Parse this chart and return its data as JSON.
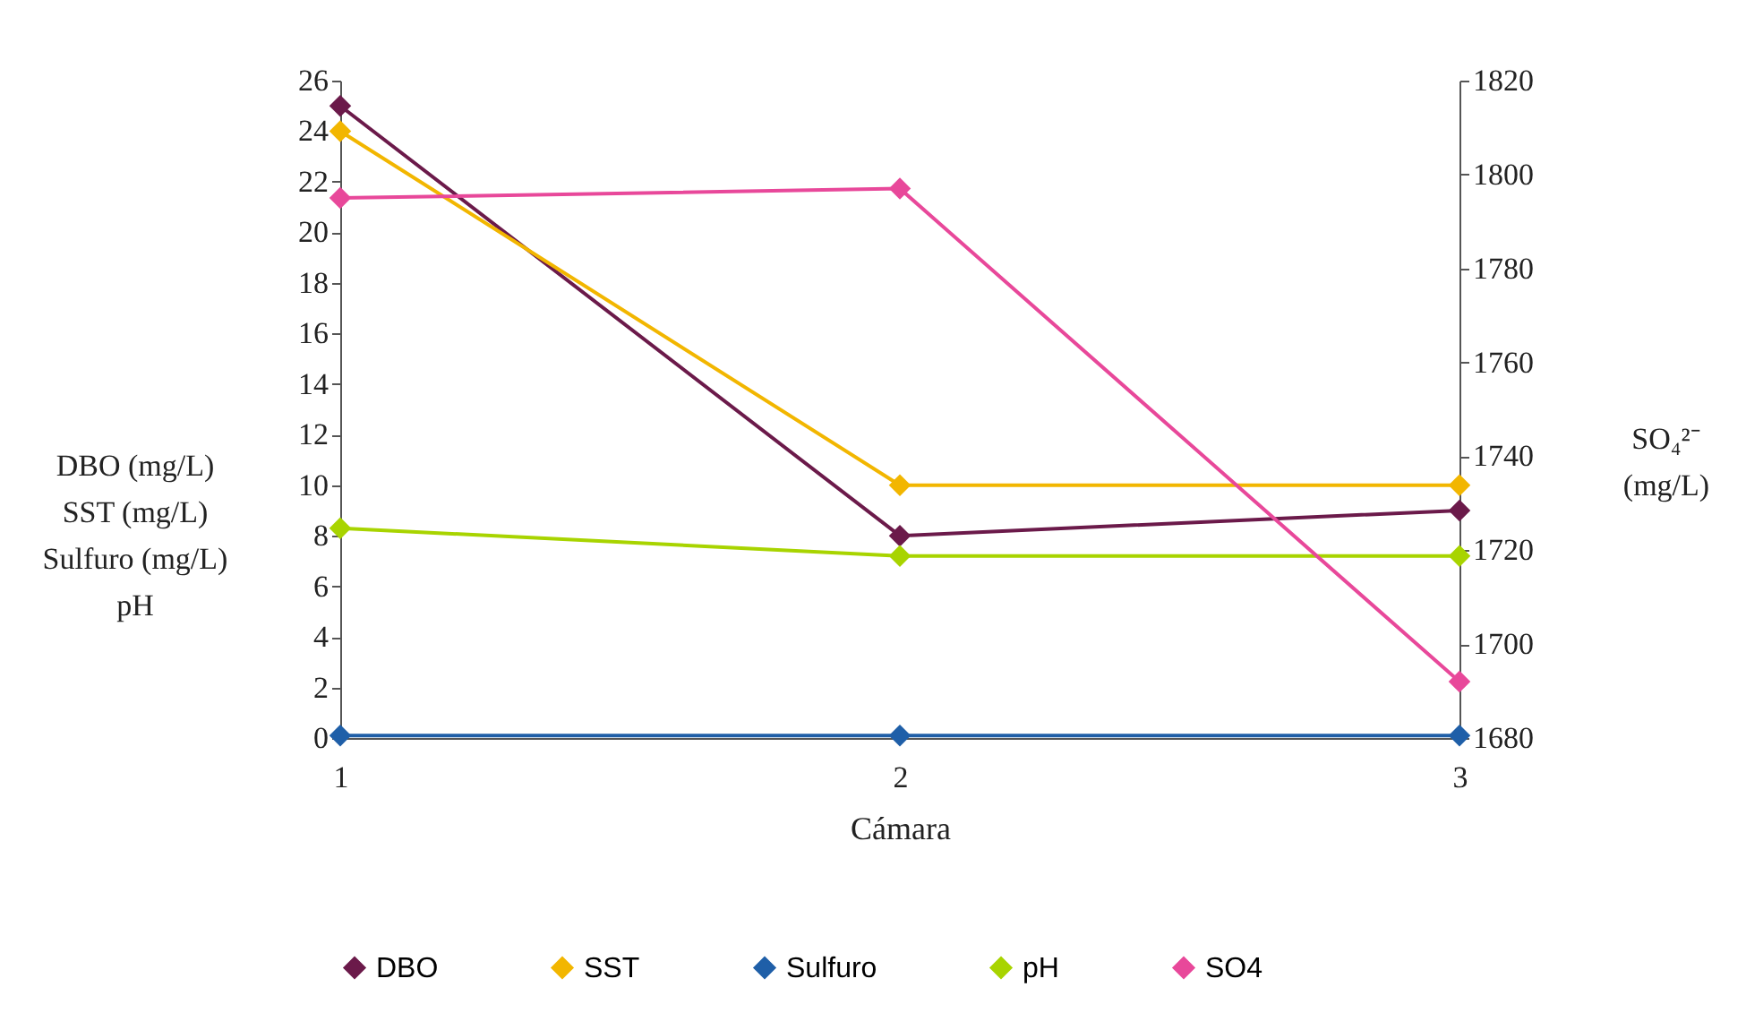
{
  "chart_data": {
    "type": "line",
    "xlabel": "Cámara",
    "ylabel": "DBO (mg/L)\nSST (mg/L)\nSulfuro (mg/L)\npH",
    "y2label": "SO₄²⁻\n(mg/L)",
    "categories": [
      "1",
      "2",
      "3"
    ],
    "ylim": [
      0,
      26
    ],
    "yticks": [
      0,
      2,
      4,
      6,
      8,
      10,
      12,
      14,
      16,
      18,
      20,
      22,
      24,
      26
    ],
    "y2lim": [
      1680,
      1820
    ],
    "y2ticks": [
      1680,
      1700,
      1720,
      1740,
      1760,
      1780,
      1800,
      1820
    ],
    "series": [
      {
        "name": "DBO",
        "color": "#6b1a4a",
        "values": [
          25,
          8,
          9
        ]
      },
      {
        "name": "SST",
        "color": "#f2b600",
        "values": [
          24,
          10,
          10
        ]
      },
      {
        "name": "Sulfuro",
        "color": "#1f5fa8",
        "values": [
          0.1,
          0.1,
          0.1
        ]
      },
      {
        "name": "pH",
        "color": "#a8d400",
        "values": [
          8.3,
          7.2,
          7.2
        ]
      },
      {
        "name": "SO4",
        "color": "#e8489a",
        "values": [
          1795,
          1797,
          1692
        ],
        "axis": "y2"
      }
    ],
    "grid": false,
    "legend": "bottom",
    "marker": "diamond"
  }
}
